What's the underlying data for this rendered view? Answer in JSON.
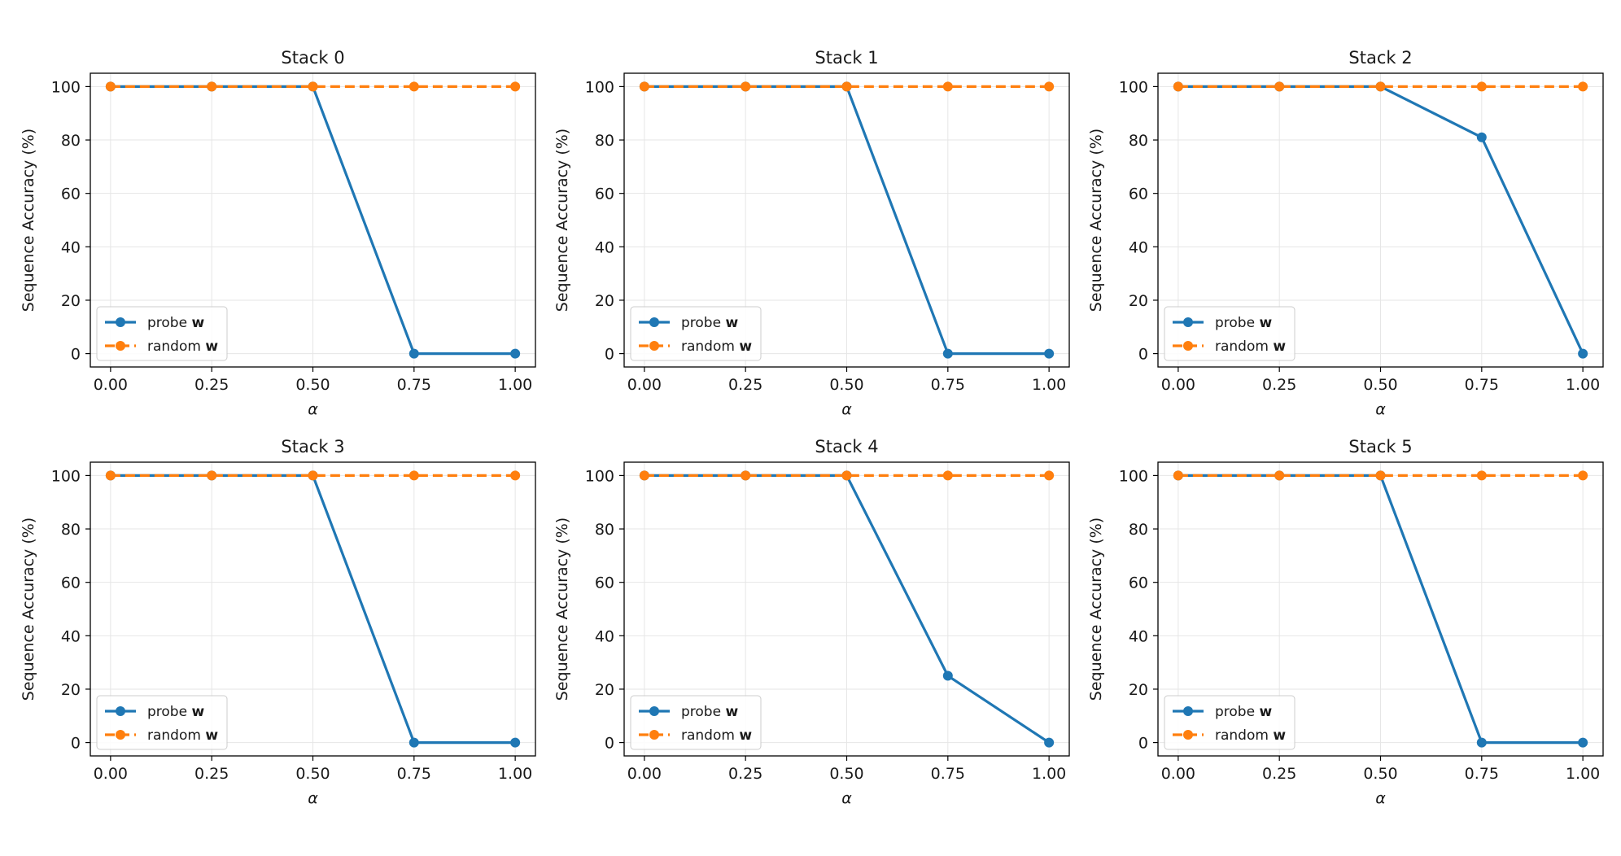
{
  "colors": {
    "probe": "#1f77b4",
    "random": "#ff7f0e",
    "grid": "#e6e6e6",
    "axes": "#000000"
  },
  "chart_data": [
    {
      "type": "line",
      "title": "Stack 0",
      "xlabel": "α",
      "ylabel": "Sequence Accuracy (%)",
      "x": [
        0.0,
        0.25,
        0.5,
        0.75,
        1.0
      ],
      "xticks": [
        "0.00",
        "0.25",
        "0.50",
        "0.75",
        "1.00"
      ],
      "yticks": [
        "0",
        "20",
        "40",
        "60",
        "80",
        "100"
      ],
      "xlim": [
        -0.05,
        1.05
      ],
      "ylim": [
        -5,
        105
      ],
      "grid": true,
      "legend_position": "lower-left",
      "series": [
        {
          "name": "probe w",
          "label_text": "probe",
          "label_bold": "w",
          "style": "solid",
          "values": [
            100,
            100,
            100,
            0,
            0
          ]
        },
        {
          "name": "random w",
          "label_text": "random",
          "label_bold": "w",
          "style": "dashed",
          "values": [
            100,
            100,
            100,
            100,
            100
          ]
        }
      ]
    },
    {
      "type": "line",
      "title": "Stack 1",
      "xlabel": "α",
      "ylabel": "Sequence Accuracy (%)",
      "x": [
        0.0,
        0.25,
        0.5,
        0.75,
        1.0
      ],
      "xticks": [
        "0.00",
        "0.25",
        "0.50",
        "0.75",
        "1.00"
      ],
      "yticks": [
        "0",
        "20",
        "40",
        "60",
        "80",
        "100"
      ],
      "xlim": [
        -0.05,
        1.05
      ],
      "ylim": [
        -5,
        105
      ],
      "grid": true,
      "legend_position": "lower-left",
      "series": [
        {
          "name": "probe w",
          "label_text": "probe",
          "label_bold": "w",
          "style": "solid",
          "values": [
            100,
            100,
            100,
            0,
            0
          ]
        },
        {
          "name": "random w",
          "label_text": "random",
          "label_bold": "w",
          "style": "dashed",
          "values": [
            100,
            100,
            100,
            100,
            100
          ]
        }
      ]
    },
    {
      "type": "line",
      "title": "Stack 2",
      "xlabel": "α",
      "ylabel": "Sequence Accuracy (%)",
      "x": [
        0.0,
        0.25,
        0.5,
        0.75,
        1.0
      ],
      "xticks": [
        "0.00",
        "0.25",
        "0.50",
        "0.75",
        "1.00"
      ],
      "yticks": [
        "0",
        "20",
        "40",
        "60",
        "80",
        "100"
      ],
      "xlim": [
        -0.05,
        1.05
      ],
      "ylim": [
        -5,
        105
      ],
      "grid": true,
      "legend_position": "lower-left",
      "series": [
        {
          "name": "probe w",
          "label_text": "probe",
          "label_bold": "w",
          "style": "solid",
          "values": [
            100,
            100,
            100,
            81,
            0
          ]
        },
        {
          "name": "random w",
          "label_text": "random",
          "label_bold": "w",
          "style": "dashed",
          "values": [
            100,
            100,
            100,
            100,
            100
          ]
        }
      ]
    },
    {
      "type": "line",
      "title": "Stack 3",
      "xlabel": "α",
      "ylabel": "Sequence Accuracy (%)",
      "x": [
        0.0,
        0.25,
        0.5,
        0.75,
        1.0
      ],
      "xticks": [
        "0.00",
        "0.25",
        "0.50",
        "0.75",
        "1.00"
      ],
      "yticks": [
        "0",
        "20",
        "40",
        "60",
        "80",
        "100"
      ],
      "xlim": [
        -0.05,
        1.05
      ],
      "ylim": [
        -5,
        105
      ],
      "grid": true,
      "legend_position": "lower-left",
      "series": [
        {
          "name": "probe w",
          "label_text": "probe",
          "label_bold": "w",
          "style": "solid",
          "values": [
            100,
            100,
            100,
            0,
            0
          ]
        },
        {
          "name": "random w",
          "label_text": "random",
          "label_bold": "w",
          "style": "dashed",
          "values": [
            100,
            100,
            100,
            100,
            100
          ]
        }
      ]
    },
    {
      "type": "line",
      "title": "Stack 4",
      "xlabel": "α",
      "ylabel": "Sequence Accuracy (%)",
      "x": [
        0.0,
        0.25,
        0.5,
        0.75,
        1.0
      ],
      "xticks": [
        "0.00",
        "0.25",
        "0.50",
        "0.75",
        "1.00"
      ],
      "yticks": [
        "0",
        "20",
        "40",
        "60",
        "80",
        "100"
      ],
      "xlim": [
        -0.05,
        1.05
      ],
      "ylim": [
        -5,
        105
      ],
      "grid": true,
      "legend_position": "lower-left",
      "series": [
        {
          "name": "probe w",
          "label_text": "probe",
          "label_bold": "w",
          "style": "solid",
          "values": [
            100,
            100,
            100,
            25,
            0
          ]
        },
        {
          "name": "random w",
          "label_text": "random",
          "label_bold": "w",
          "style": "dashed",
          "values": [
            100,
            100,
            100,
            100,
            100
          ]
        }
      ]
    },
    {
      "type": "line",
      "title": "Stack 5",
      "xlabel": "α",
      "ylabel": "Sequence Accuracy (%)",
      "x": [
        0.0,
        0.25,
        0.5,
        0.75,
        1.0
      ],
      "xticks": [
        "0.00",
        "0.25",
        "0.50",
        "0.75",
        "1.00"
      ],
      "yticks": [
        "0",
        "20",
        "40",
        "60",
        "80",
        "100"
      ],
      "xlim": [
        -0.05,
        1.05
      ],
      "ylim": [
        -5,
        105
      ],
      "grid": true,
      "legend_position": "lower-left",
      "series": [
        {
          "name": "probe w",
          "label_text": "probe",
          "label_bold": "w",
          "style": "solid",
          "values": [
            100,
            100,
            100,
            0,
            0
          ]
        },
        {
          "name": "random w",
          "label_text": "random",
          "label_bold": "w",
          "style": "dashed",
          "values": [
            100,
            100,
            100,
            100,
            100
          ]
        }
      ]
    }
  ]
}
